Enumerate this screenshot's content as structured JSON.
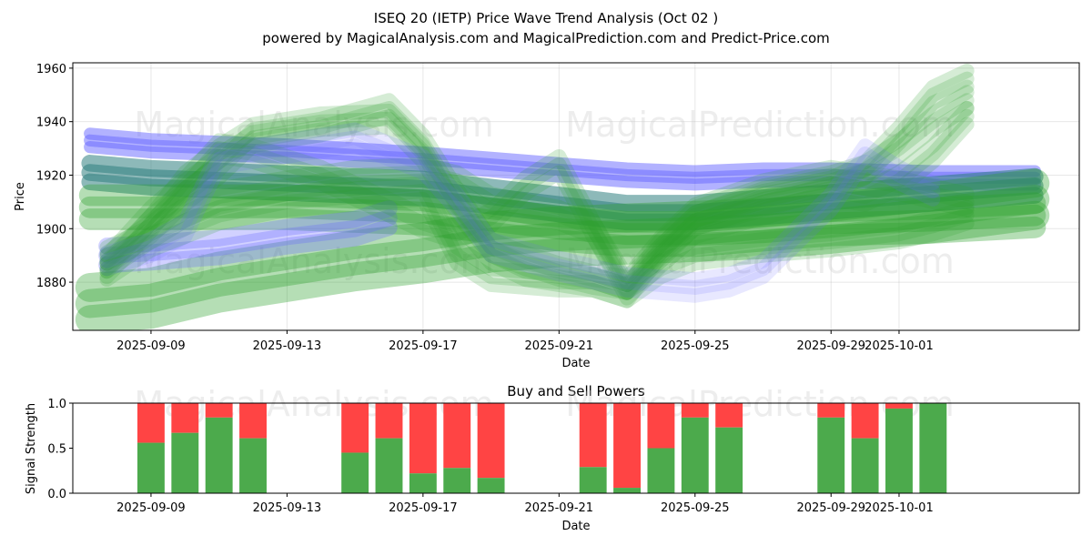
{
  "chart_data": [
    {
      "type": "area",
      "title": "ISEQ 20 (IETP) Price Wave Trend Analysis (Oct 02 )",
      "subtitle": "powered by MagicalAnalysis.com and MagicalPrediction.com and Predict-Price.com",
      "xlabel": "Date",
      "ylabel": "Price",
      "xlim": [
        -2.3,
        27.3
      ],
      "ylim": [
        1862,
        1962
      ],
      "x_ticks": [
        {
          "label": "2025-09-09",
          "day": 0
        },
        {
          "label": "2025-09-13",
          "day": 4
        },
        {
          "label": "2025-09-17",
          "day": 8
        },
        {
          "label": "2025-09-21",
          "day": 12
        },
        {
          "label": "2025-09-25",
          "day": 16
        },
        {
          "label": "2025-09-29",
          "day": 20
        },
        {
          "label": "2025-10-01",
          "day": 22
        }
      ],
      "y_ticks": [
        1880,
        1900,
        1920,
        1940,
        1960
      ],
      "grid": true,
      "watermarks": [
        "MagicalAnalysis.com",
        "MagicalPrediction.com",
        "MagicalAnalysis.com",
        "MagicalPrediction.com"
      ],
      "series": [
        {
          "name": "trend-upper-blue",
          "color": "#6666ff",
          "alpha": 0.5,
          "width": 5,
          "points": [
            [
              -1.8,
              1933
            ],
            [
              0,
              1931
            ],
            [
              4,
              1929
            ],
            [
              8,
              1926
            ],
            [
              10,
              1924
            ],
            [
              12,
              1922
            ],
            [
              14,
              1920
            ],
            [
              16,
              1919
            ],
            [
              18,
              1920
            ],
            [
              20,
              1920
            ],
            [
              23,
              1919
            ],
            [
              26,
              1919
            ]
          ]
        },
        {
          "name": "trend-middle-teal",
          "color": "#2f7f7f",
          "alpha": 0.55,
          "width": 7,
          "points": [
            [
              -1.8,
              1921
            ],
            [
              0,
              1919
            ],
            [
              4,
              1917
            ],
            [
              8,
              1915
            ],
            [
              10,
              1912
            ],
            [
              12,
              1909
            ],
            [
              14,
              1906
            ],
            [
              16,
              1906
            ],
            [
              18,
              1908
            ],
            [
              20,
              1910
            ],
            [
              23,
              1913
            ],
            [
              26,
              1916
            ]
          ]
        },
        {
          "name": "trend-lower-green",
          "color": "#2ca02c",
          "alpha": 0.35,
          "width": 9,
          "points": [
            [
              -1.8,
              1908
            ],
            [
              0,
              1908
            ],
            [
              4,
              1908
            ],
            [
              8,
              1906
            ],
            [
              10,
              1903
            ],
            [
              12,
              1900
            ],
            [
              14,
              1898
            ],
            [
              16,
              1898
            ],
            [
              18,
              1900
            ],
            [
              20,
              1902
            ],
            [
              23,
              1903
            ],
            [
              26,
              1905
            ]
          ]
        },
        {
          "name": "trend-bottom-green",
          "color": "#2ca02c",
          "alpha": 0.35,
          "width": 12,
          "points": [
            [
              -1.8,
              1872
            ],
            [
              0,
              1874
            ],
            [
              2,
              1880
            ],
            [
              4,
              1884
            ],
            [
              6,
              1888
            ],
            [
              8,
              1891
            ],
            [
              10,
              1895
            ],
            [
              12,
              1897
            ],
            [
              14,
              1898
            ],
            [
              16,
              1899
            ],
            [
              18,
              1900
            ],
            [
              20,
              1902
            ],
            [
              23,
              1906
            ],
            [
              26,
              1911
            ]
          ]
        },
        {
          "name": "trend-low-blue",
          "color": "#6666ff",
          "alpha": 0.3,
          "width": 7,
          "points": [
            [
              -1.3,
              1890
            ],
            [
              0,
              1891
            ],
            [
              2,
              1893
            ],
            [
              4,
              1897
            ],
            [
              6,
              1900
            ],
            [
              7,
              1904
            ]
          ]
        },
        {
          "name": "wave-a",
          "color": "#2ca02c",
          "alpha": 0.2,
          "width": 6,
          "points": [
            [
              -1.3,
              1888
            ],
            [
              0,
              1900
            ],
            [
              1,
              1912
            ],
            [
              2,
              1922
            ],
            [
              3,
              1934
            ],
            [
              5,
              1938
            ],
            [
              7,
              1945
            ],
            [
              8,
              1932
            ],
            [
              9,
              1912
            ],
            [
              10,
              1893
            ],
            [
              11,
              1888
            ],
            [
              12,
              1884
            ],
            [
              13,
              1881
            ],
            [
              14,
              1879
            ],
            [
              15,
              1891
            ],
            [
              16,
              1903
            ],
            [
              18,
              1911
            ],
            [
              20,
              1916
            ],
            [
              21,
              1922
            ],
            [
              22,
              1935
            ],
            [
              23,
              1950
            ],
            [
              24,
              1956
            ]
          ]
        },
        {
          "name": "wave-b",
          "color": "#2ca02c",
          "alpha": 0.2,
          "width": 6,
          "points": [
            [
              -1.3,
              1885
            ],
            [
              0,
              1902
            ],
            [
              1,
              1918
            ],
            [
              2,
              1928
            ],
            [
              3,
              1936
            ],
            [
              5,
              1940
            ],
            [
              7,
              1941
            ],
            [
              8,
              1928
            ],
            [
              9,
              1905
            ],
            [
              10,
              1890
            ],
            [
              11,
              1884
            ],
            [
              12,
              1882
            ],
            [
              13,
              1880
            ],
            [
              14,
              1876
            ],
            [
              15,
              1893
            ],
            [
              16,
              1905
            ],
            [
              18,
              1913
            ],
            [
              20,
              1918
            ],
            [
              21,
              1922
            ],
            [
              22,
              1930
            ],
            [
              23,
              1940
            ],
            [
              24,
              1948
            ]
          ]
        },
        {
          "name": "wave-c",
          "color": "#2ca02c",
          "alpha": 0.2,
          "width": 6,
          "points": [
            [
              -1.3,
              1887
            ],
            [
              0,
              1905
            ],
            [
              1,
              1916
            ],
            [
              2,
              1930
            ],
            [
              3,
              1928
            ],
            [
              4,
              1924
            ],
            [
              5,
              1920
            ],
            [
              6,
              1914
            ],
            [
              7,
              1908
            ],
            [
              8,
              1902
            ],
            [
              9,
              1898
            ],
            [
              10,
              1904
            ],
            [
              11,
              1916
            ],
            [
              12,
              1924
            ],
            [
              13,
              1900
            ],
            [
              14,
              1877
            ],
            [
              15,
              1889
            ],
            [
              16,
              1900
            ],
            [
              18,
              1907
            ],
            [
              20,
              1914
            ],
            [
              21,
              1912
            ],
            [
              22,
              1918
            ],
            [
              23,
              1928
            ],
            [
              24,
              1942
            ]
          ]
        },
        {
          "name": "wave-d",
          "color": "#2ca02c",
          "alpha": 0.2,
          "width": 6,
          "points": [
            [
              -1.3,
              1890
            ],
            [
              0,
              1898
            ],
            [
              1,
              1906
            ],
            [
              2,
              1912
            ],
            [
              4,
              1916
            ],
            [
              6,
              1920
            ],
            [
              8,
              1921
            ],
            [
              9,
              1918
            ],
            [
              10,
              1910
            ],
            [
              12,
              1905
            ],
            [
              13,
              1900
            ],
            [
              14,
              1879
            ],
            [
              15,
              1894
            ],
            [
              16,
              1906
            ],
            [
              18,
              1915
            ],
            [
              20,
              1920
            ],
            [
              22,
              1916
            ],
            [
              24,
              1910
            ]
          ]
        },
        {
          "name": "wave-e",
          "color": "#2ca02c",
          "alpha": 0.2,
          "width": 6,
          "points": [
            [
              -1.3,
              1884
            ],
            [
              0,
              1895
            ],
            [
              2,
              1905
            ],
            [
              4,
              1910
            ],
            [
              6,
              1912
            ],
            [
              8,
              1914
            ],
            [
              9,
              1890
            ],
            [
              10,
              1882
            ],
            [
              12,
              1880
            ],
            [
              13,
              1880
            ],
            [
              14,
              1876
            ],
            [
              15,
              1885
            ],
            [
              16,
              1890
            ],
            [
              18,
              1893
            ],
            [
              20,
              1895
            ],
            [
              22,
              1898
            ],
            [
              23,
              1901
            ],
            [
              24,
              1905
            ]
          ]
        },
        {
          "name": "wave-f",
          "color": "#6666ff",
          "alpha": 0.15,
          "width": 6,
          "points": [
            [
              -1.3,
              1888
            ],
            [
              0,
              1893
            ],
            [
              1,
              1900
            ],
            [
              2,
              1926
            ],
            [
              4,
              1930
            ],
            [
              6,
              1934
            ],
            [
              8,
              1924
            ],
            [
              9,
              1910
            ],
            [
              10,
              1893
            ],
            [
              12,
              1886
            ],
            [
              14,
              1880
            ],
            [
              16,
              1878
            ],
            [
              17,
              1880
            ],
            [
              18,
              1885
            ],
            [
              20,
              1910
            ],
            [
              21,
              1928
            ],
            [
              22,
              1920
            ],
            [
              23,
              1914
            ]
          ]
        }
      ]
    },
    {
      "type": "bar",
      "title": "Buy and Sell Powers",
      "xlabel": "Date",
      "ylabel": "Signal Strength",
      "xlim": [
        -2.3,
        27.3
      ],
      "ylim": [
        0,
        1.0
      ],
      "y_ticks": [
        "0.0",
        "0.5",
        "1.0"
      ],
      "x_ticks": [
        {
          "label": "2025-09-09",
          "day": 0
        },
        {
          "label": "2025-09-13",
          "day": 4
        },
        {
          "label": "2025-09-17",
          "day": 8
        },
        {
          "label": "2025-09-21",
          "day": 12
        },
        {
          "label": "2025-09-25",
          "day": 16
        },
        {
          "label": "2025-09-29",
          "day": 20
        },
        {
          "label": "2025-10-01",
          "day": 22
        }
      ],
      "buy_color": "#4caa4c",
      "sell_color": "#ff4444",
      "watermarks": [
        "MagicalAnalysis.com",
        "MagicalPrediction.com"
      ],
      "bars": [
        {
          "date": "2025-09-09",
          "day": 0,
          "buy": 0.56
        },
        {
          "date": "2025-09-10",
          "day": 1,
          "buy": 0.67
        },
        {
          "date": "2025-09-11",
          "day": 2,
          "buy": 0.84
        },
        {
          "date": "2025-09-12",
          "day": 3,
          "buy": 0.61
        },
        {
          "date": "2025-09-15",
          "day": 6,
          "buy": 0.45
        },
        {
          "date": "2025-09-16",
          "day": 7,
          "buy": 0.61
        },
        {
          "date": "2025-09-17",
          "day": 8,
          "buy": 0.22
        },
        {
          "date": "2025-09-18",
          "day": 9,
          "buy": 0.28
        },
        {
          "date": "2025-09-19",
          "day": 10,
          "buy": 0.17
        },
        {
          "date": "2025-09-22",
          "day": 13,
          "buy": 0.29
        },
        {
          "date": "2025-09-23",
          "day": 14,
          "buy": 0.06
        },
        {
          "date": "2025-09-24",
          "day": 15,
          "buy": 0.5
        },
        {
          "date": "2025-09-25",
          "day": 16,
          "buy": 0.84
        },
        {
          "date": "2025-09-26",
          "day": 17,
          "buy": 0.73
        },
        {
          "date": "2025-09-29",
          "day": 20,
          "buy": 0.84
        },
        {
          "date": "2025-09-30",
          "day": 21,
          "buy": 0.61
        },
        {
          "date": "2025-10-01",
          "day": 22,
          "buy": 0.94
        },
        {
          "date": "2025-10-02",
          "day": 23,
          "buy": 1.0
        }
      ]
    }
  ]
}
